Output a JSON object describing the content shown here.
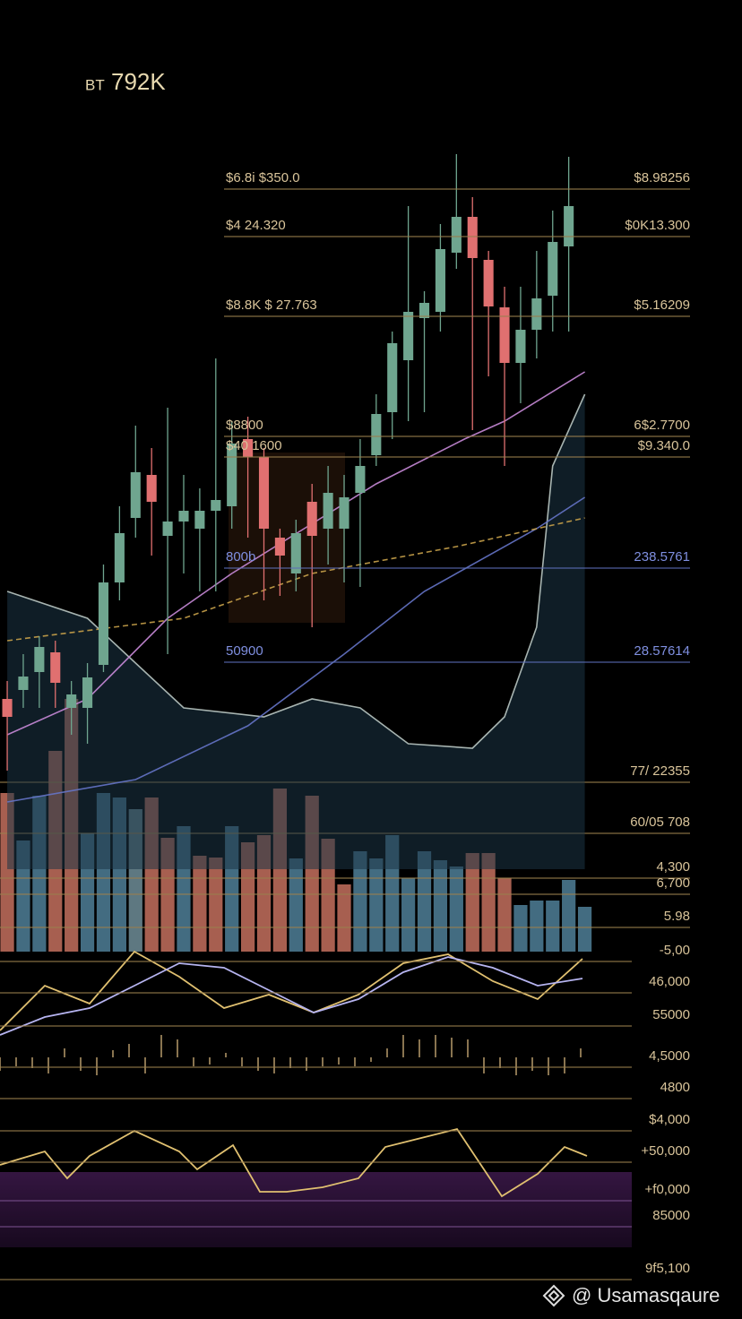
{
  "header": {
    "ticker": "BT",
    "price": "792K"
  },
  "watermark": "@ Usamasqaure",
  "chart_data": [
    {
      "type": "bar",
      "xlim": [
        -0.45,
        45.8
      ],
      "ylim": [
        0,
        300
      ],
      "x": [
        0,
        1,
        2,
        3,
        4,
        5,
        6,
        7,
        8,
        9,
        10,
        11,
        12,
        13,
        14,
        15,
        16,
        17,
        18,
        19,
        20,
        21,
        22,
        23,
        24,
        25,
        26,
        27,
        28,
        29,
        30,
        31,
        32,
        33,
        34,
        35,
        36
      ],
      "values": [
        177,
        124,
        174,
        224,
        282,
        132,
        177,
        172,
        159,
        172,
        127,
        140,
        107,
        105,
        140,
        122,
        130,
        182,
        104,
        174,
        126,
        75,
        112,
        104,
        130,
        82,
        112,
        102,
        95,
        110,
        110,
        82,
        52,
        57,
        57,
        80,
        50
      ],
      "colors": [
        "#c4705e",
        "#4f7f98",
        "#4f7f98",
        "#c4705e",
        "#c4705e",
        "#4f7f98",
        "#4f7f98",
        "#4f7f98",
        "#6f8d98",
        "#c4705e",
        "#c4705e",
        "#4f7f98",
        "#c4705e",
        "#c4705e",
        "#4f7f98",
        "#c4705e",
        "#c4705e",
        "#c4705e",
        "#4f7f98",
        "#c4705e",
        "#c4705e",
        "#c4705e",
        "#4f7f98",
        "#4f7f98",
        "#4f7f98",
        "#4f7f98",
        "#4f7f98",
        "#4f7f98",
        "#4f7f98",
        "#c4705e",
        "#c4705e",
        "#c4705e",
        "#4f7f98",
        "#4f7f98",
        "#4f7f98",
        "#4f7f98",
        "#4f7f98"
      ],
      "levels": [
        {
          "value": 189,
          "right_label": "77/ 22355",
          "color": "#9a7f4e"
        },
        {
          "value": 132,
          "right_label": "60/05 708",
          "color": "#9a7f4e"
        },
        {
          "value": 82,
          "right_label": "4,300",
          "color": "#9a7f4e"
        },
        {
          "value": 64,
          "right_label": "6,700",
          "color": "#9a7f4e"
        },
        {
          "value": 27,
          "right_label": "5.98",
          "color": "#9a7f4e"
        }
      ]
    },
    {
      "type": "candlestick",
      "xlim": [
        -0.45,
        45.8
      ],
      "ylim": [
        -100,
        700
      ],
      "x": [
        0,
        1,
        2,
        3,
        4,
        5,
        6,
        7,
        8,
        9,
        10,
        11,
        12,
        13,
        14,
        15,
        16,
        17,
        18,
        19,
        20,
        21,
        22,
        23,
        24,
        25,
        26,
        27,
        28,
        29,
        30,
        31,
        32,
        33,
        34,
        35
      ],
      "open": [
        90,
        100,
        120,
        142,
        80,
        80,
        128,
        220,
        292,
        340,
        272,
        288,
        280,
        300,
        305,
        380,
        360,
        270,
        230,
        310,
        280,
        280,
        320,
        362,
        410,
        468,
        515,
        522,
        588,
        628,
        580,
        527,
        465,
        502,
        540,
        595
      ],
      "high": [
        110,
        140,
        160,
        155,
        110,
        130,
        240,
        305,
        395,
        370,
        415,
        340,
        325,
        470,
        400,
        405,
        370,
        280,
        290,
        330,
        350,
        340,
        380,
        430,
        500,
        640,
        545,
        620,
        698,
        650,
        590,
        550,
        550,
        590,
        635,
        695
      ],
      "low": [
        10,
        80,
        80,
        80,
        50,
        40,
        120,
        200,
        270,
        250,
        140,
        230,
        210,
        210,
        280,
        270,
        200,
        205,
        210,
        170,
        240,
        220,
        215,
        350,
        380,
        400,
        410,
        500,
        570,
        390,
        450,
        350,
        420,
        470,
        500,
        500
      ],
      "close": [
        70,
        115,
        148,
        108,
        95,
        114,
        220,
        275,
        343,
        310,
        288,
        300,
        300,
        312,
        375,
        360,
        280,
        250,
        275,
        272,
        320,
        315,
        350,
        408,
        487,
        522,
        532,
        592,
        628,
        582,
        528,
        465,
        502,
        537,
        600,
        640
      ],
      "up_color": "#6fa58f",
      "down_color": "#e07070",
      "overlays": [
        {
          "x": [
            0,
            5,
            11,
            16,
            19,
            22,
            25,
            29,
            31,
            33,
            34,
            36
          ],
          "values": [
            210,
            180,
            80,
            70,
            90,
            80,
            40,
            35,
            70,
            170,
            350,
            430
          ],
          "color": "#b9c7c2",
          "area": true
        },
        {
          "x": [
            0,
            8,
            15,
            21,
            26,
            33,
            36
          ],
          "values": [
            -25,
            0,
            60,
            140,
            210,
            280,
            315
          ],
          "color": "#6574c8",
          "area": false
        },
        {
          "x": [
            0,
            5,
            10,
            14,
            18.5,
            23,
            28.5,
            31,
            36
          ],
          "values": [
            50,
            90,
            180,
            230,
            280,
            330,
            380,
            400,
            455
          ],
          "color": "#c88ad8",
          "area": false
        },
        {
          "x": [
            0,
            11,
            19,
            28,
            36
          ],
          "values": [
            155,
            180,
            230,
            260,
            292
          ],
          "color": "#c9a24a",
          "area": false,
          "dashed": true
        }
      ],
      "levels": [
        {
          "value": 659,
          "left_label": "$6.8i $350.0",
          "right_label": "$8.98256",
          "color": "#9a7f4e"
        },
        {
          "value": 606,
          "left_label": "$4 24.320",
          "right_label": "$0K13.300",
          "color": "#9a7f4e"
        },
        {
          "value": 517,
          "left_label": "$8.8K $ 27.763",
          "right_label": "$5.16209",
          "color": "#9a7f4e"
        },
        {
          "value": 383,
          "left_label": "$8800",
          "right_label": "6$2.7700",
          "color": "#9a7f4e"
        },
        {
          "value": 360,
          "left_label": "$40 1600",
          "right_label": "$9.340.0",
          "color": "#9a7f4e"
        },
        {
          "value": 236,
          "left_label": "800b",
          "right_label": "238.5761",
          "color": "#5d6fb8"
        },
        {
          "value": 131,
          "left_label": "50900",
          "right_label": "28.57614",
          "color": "#5d6fb8"
        }
      ]
    },
    {
      "type": "line",
      "xlim": [
        0,
        82.8
      ],
      "ylim": [
        -10,
        90
      ],
      "series": [
        {
          "x": [
            0,
            5,
            10,
            15,
            20,
            25,
            30,
            35,
            40,
            45,
            50,
            55,
            60,
            65
          ],
          "values": [
            0,
            50,
            30,
            88,
            60,
            25,
            40,
            20,
            40,
            75,
            85,
            55,
            35,
            80
          ],
          "color": "#e0c070"
        },
        {
          "x": [
            0,
            5,
            10,
            15,
            20,
            25,
            30,
            35,
            40,
            45,
            50,
            55,
            60,
            65
          ],
          "values": [
            -5,
            15,
            25,
            50,
            75,
            70,
            45,
            20,
            35,
            65,
            82,
            70,
            50,
            58
          ],
          "color": "#b6b4f0"
        }
      ],
      "levels": [
        {
          "value": 77,
          "right_label": "-5,00",
          "color": "#9a7f4e"
        },
        {
          "value": 42,
          "right_label": "46,000",
          "color": "#9a7f4e"
        },
        {
          "value": 5,
          "right_label": "55000",
          "color": "#9a7f4e"
        }
      ]
    },
    {
      "type": "spike",
      "xlim": [
        0,
        82.8
      ],
      "ylim": [
        -50,
        50
      ],
      "color": "#b79a6a",
      "x": [
        0,
        1.8,
        3.6,
        5.4,
        7.2,
        9,
        10.8,
        12.6,
        14.4,
        16.2,
        18,
        19.8,
        21.6,
        23.4,
        25.2,
        27,
        28.8,
        30.6,
        32.4,
        34.2,
        36,
        37.8,
        39.6,
        41.4,
        43.2,
        45,
        46.8,
        48.6,
        50.4,
        52.2,
        54,
        55.8,
        57.6,
        59.4,
        61.2,
        63,
        64.8
      ],
      "values": [
        -15,
        -10,
        -12,
        -18,
        10,
        -15,
        -20,
        8,
        15,
        -18,
        25,
        20,
        -10,
        -8,
        5,
        -10,
        -15,
        -18,
        -12,
        -15,
        -10,
        -8,
        -10,
        -5,
        10,
        25,
        20,
        25,
        22,
        20,
        -18,
        -12,
        -20,
        -15,
        -20,
        -18,
        10
      ],
      "levels": [
        {
          "value": -11,
          "right_label": "4,5000",
          "color": "#9a7f4e"
        },
        {
          "value": -46,
          "right_label": "4800",
          "color": "#9a7f4e"
        }
      ]
    },
    {
      "type": "line",
      "xlim": [
        0,
        82.8
      ],
      "ylim": [
        -100,
        100
      ],
      "series": [
        {
          "x": [
            0,
            5,
            7.5,
            10,
            15,
            20,
            22,
            26,
            29,
            32,
            36,
            40,
            43,
            47,
            51,
            53,
            56,
            60,
            63,
            65.5
          ],
          "values": [
            40,
            55,
            25,
            50,
            78,
            55,
            35,
            62,
            10,
            10,
            15,
            25,
            60,
            70,
            80,
            50,
            5,
            30,
            60,
            50
          ],
          "color": "#e0c070"
        }
      ],
      "levels": [
        {
          "value": 78,
          "right_label": "$4,000",
          "color": "#9a7f4e"
        },
        {
          "value": 43,
          "right_label": "+50,000",
          "color": "#9a7f4e"
        },
        {
          "value": 0,
          "right_label": "+f0,000",
          "color": "#7a4f8e"
        },
        {
          "value": -29,
          "right_label": "85000",
          "color": "#7a4f8e"
        },
        {
          "value": -88,
          "right_label": "9f5,100",
          "color": "#9a7f4e"
        }
      ]
    }
  ]
}
